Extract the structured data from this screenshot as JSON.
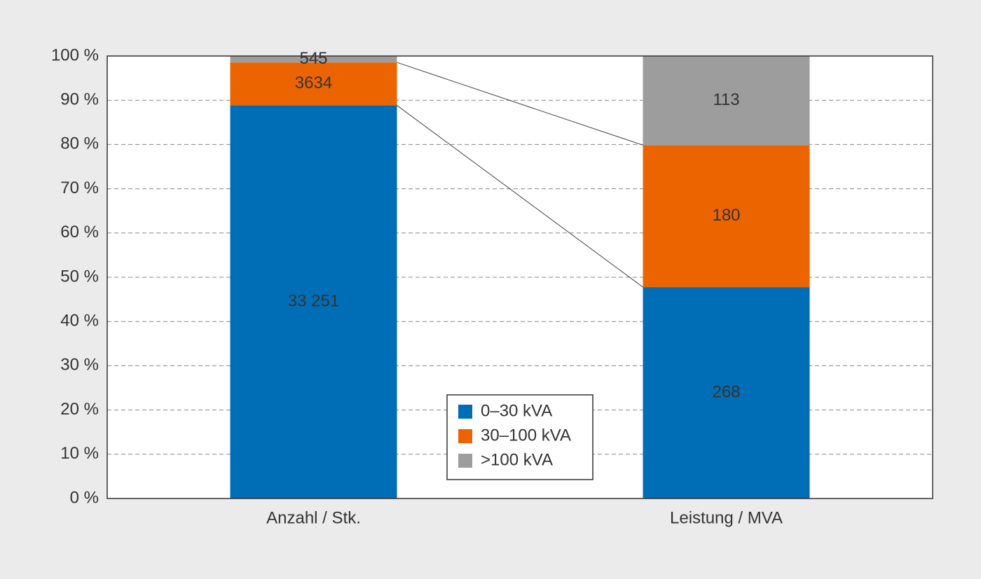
{
  "chart_data": {
    "type": "bar",
    "stacking": "percent",
    "categories": [
      "Anzahl / Stk.",
      "Leistung / MVA"
    ],
    "series": [
      {
        "name": "0–30 kVA",
        "color": "#006eb7",
        "values": [
          33251,
          268
        ],
        "value_labels": [
          "33 251",
          "268"
        ]
      },
      {
        "name": "30–100 kVA",
        "color": "#eb6400",
        "values": [
          3634,
          180
        ]
      },
      {
        "name": ">100 kVA",
        "color": "#9d9d9d",
        "values": [
          545,
          113
        ]
      }
    ],
    "ylim": [
      0,
      100
    ],
    "yticks": [
      {
        "value": 0,
        "label": "0 %"
      },
      {
        "value": 10,
        "label": "10 %"
      },
      {
        "value": 20,
        "label": "20 %"
      },
      {
        "value": 30,
        "label": "30 %"
      },
      {
        "value": 40,
        "label": "40 %"
      },
      {
        "value": 50,
        "label": "50 %"
      },
      {
        "value": 60,
        "label": "60 %"
      },
      {
        "value": 70,
        "label": "70 %"
      },
      {
        "value": 80,
        "label": "80 %"
      },
      {
        "value": 90,
        "label": "90 %"
      },
      {
        "value": 100,
        "label": "100 %"
      }
    ],
    "grid": true,
    "legend": "bottom-center"
  }
}
